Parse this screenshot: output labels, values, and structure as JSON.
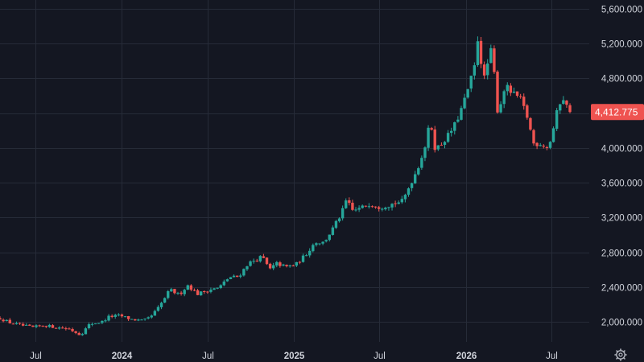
{
  "chart_data": {
    "type": "candlestick",
    "y_axis": {
      "position": "right",
      "ylim": [
        1830,
        5670
      ],
      "ticks": [
        2000,
        2400,
        2800,
        3200,
        3600,
        4000,
        4400,
        4800,
        5200,
        5600
      ],
      "tick_labels": [
        "2,000.000",
        "2,400.000",
        "2,800.000",
        "3,200.000",
        "3,600.000",
        "4,000.000",
        "4,400.000",
        "4,800.000",
        "5,200.000",
        "5,600.000"
      ]
    },
    "x_axis": {
      "range": [
        "2023-04-17",
        "2026-09-20"
      ],
      "ticks": [
        {
          "date": "2023-07-01",
          "label": "Jul",
          "bold": false
        },
        {
          "date": "2024-01-01",
          "label": "2024",
          "bold": true
        },
        {
          "date": "2024-07-01",
          "label": "Jul",
          "bold": false
        },
        {
          "date": "2025-01-01",
          "label": "2025",
          "bold": true
        },
        {
          "date": "2025-07-01",
          "label": "Jul",
          "bold": false
        },
        {
          "date": "2026-01-01",
          "label": "2026",
          "bold": true
        },
        {
          "date": "2026-07-01",
          "label": "Jul",
          "bold": false
        }
      ]
    },
    "grid": true,
    "colors": {
      "up": "#26a69a",
      "down": "#ef5350",
      "background": "#141722",
      "grid": "#262b38",
      "text": "#d1d4dc"
    },
    "last_price": {
      "value": 4412.775,
      "label": "4,412.775"
    },
    "anchors": [
      [
        "2023-04-17",
        2040
      ],
      [
        "2023-05-10",
        1985
      ],
      [
        "2023-06-05",
        1955
      ],
      [
        "2023-06-25",
        1935
      ],
      [
        "2023-07-20",
        1960
      ],
      [
        "2023-08-15",
        1935
      ],
      [
        "2023-09-10",
        1920
      ],
      [
        "2023-10-05",
        1850
      ],
      [
        "2023-10-25",
        1975
      ],
      [
        "2023-11-20",
        2000
      ],
      [
        "2023-12-05",
        2060
      ],
      [
        "2023-12-28",
        2070
      ],
      [
        "2024-01-20",
        2030
      ],
      [
        "2024-02-15",
        2010
      ],
      [
        "2024-03-01",
        2050
      ],
      [
        "2024-03-20",
        2170
      ],
      [
        "2024-04-12",
        2370
      ],
      [
        "2024-05-01",
        2310
      ],
      [
        "2024-05-20",
        2420
      ],
      [
        "2024-06-10",
        2320
      ],
      [
        "2024-07-05",
        2370
      ],
      [
        "2024-07-25",
        2390
      ],
      [
        "2024-08-15",
        2510
      ],
      [
        "2024-09-05",
        2520
      ],
      [
        "2024-09-25",
        2670
      ],
      [
        "2024-10-25",
        2750
      ],
      [
        "2024-11-10",
        2600
      ],
      [
        "2024-11-25",
        2670
      ],
      [
        "2024-12-15",
        2630
      ],
      [
        "2025-01-05",
        2660
      ],
      [
        "2025-01-25",
        2770
      ],
      [
        "2025-02-15",
        2920
      ],
      [
        "2025-03-05",
        2910
      ],
      [
        "2025-03-25",
        3080
      ],
      [
        "2025-04-12",
        3250
      ],
      [
        "2025-04-22",
        3400
      ],
      [
        "2025-05-05",
        3280
      ],
      [
        "2025-05-20",
        3300
      ],
      [
        "2025-06-10",
        3360
      ],
      [
        "2025-07-01",
        3320
      ],
      [
        "2025-07-25",
        3350
      ],
      [
        "2025-08-20",
        3390
      ],
      [
        "2025-09-01",
        3540
      ],
      [
        "2025-09-20",
        3760
      ],
      [
        "2025-10-08",
        4050
      ],
      [
        "2025-10-17",
        4320
      ],
      [
        "2025-10-28",
        3980
      ],
      [
        "2025-11-10",
        4050
      ],
      [
        "2025-11-25",
        4150
      ],
      [
        "2025-12-10",
        4280
      ],
      [
        "2025-12-26",
        4500
      ],
      [
        "2026-01-08",
        4720
      ],
      [
        "2026-01-20",
        4950
      ],
      [
        "2026-01-29",
        5400
      ],
      [
        "2026-02-05",
        4700
      ],
      [
        "2026-02-15",
        4950
      ],
      [
        "2026-02-25",
        5150
      ],
      [
        "2026-03-10",
        4380
      ],
      [
        "2026-03-25",
        4720
      ],
      [
        "2026-04-10",
        4620
      ],
      [
        "2026-04-25",
        4580
      ],
      [
        "2026-05-10",
        4380
      ],
      [
        "2026-05-25",
        4050
      ],
      [
        "2026-06-10",
        4050
      ],
      [
        "2026-06-25",
        4000
      ],
      [
        "2026-07-05",
        4200
      ],
      [
        "2026-07-15",
        4450
      ],
      [
        "2026-07-25",
        4600
      ],
      [
        "2026-08-05",
        4450
      ],
      [
        "2026-08-12",
        4412.775
      ]
    ]
  }
}
